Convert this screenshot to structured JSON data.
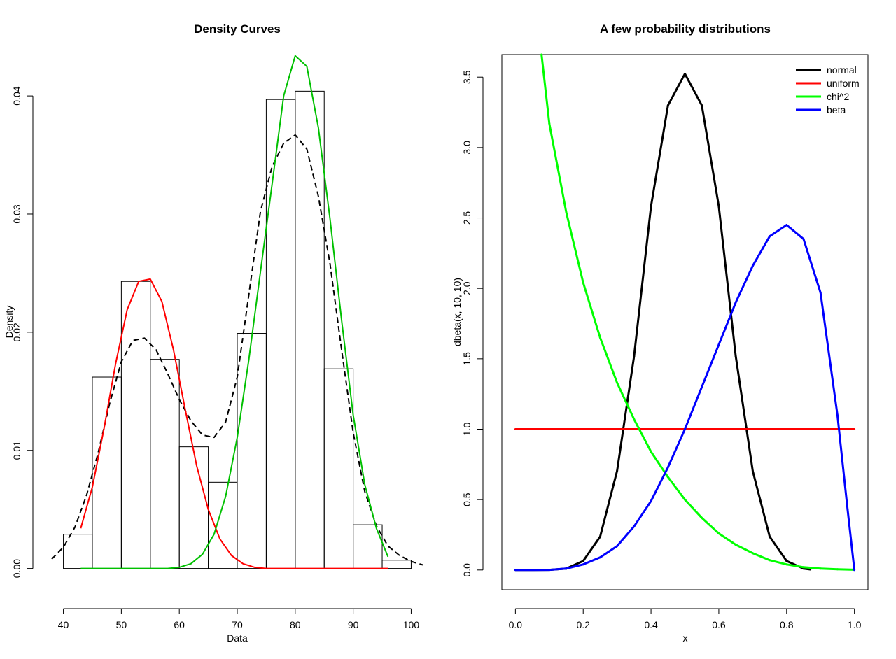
{
  "chart_data": [
    {
      "type": "histogram",
      "title": "Density Curves",
      "xlabel": "Data",
      "ylabel": "Density",
      "xlim": [
        38,
        102
      ],
      "ylim": [
        -0.0018,
        0.0435
      ],
      "xticks": [
        40,
        50,
        60,
        70,
        80,
        90,
        100
      ],
      "xtick_labels": [
        "40",
        "50",
        "60",
        "70",
        "80",
        "90",
        "100"
      ],
      "yticks": [
        0,
        0.01,
        0.02,
        0.03,
        0.04
      ],
      "ytick_labels": [
        "0.00",
        "0.01",
        "0.02",
        "0.03",
        "0.04"
      ],
      "grid": false,
      "bins": [
        {
          "x0": 40,
          "x1": 45,
          "density": 0.0029
        },
        {
          "x0": 45,
          "x1": 50,
          "density": 0.0162
        },
        {
          "x0": 50,
          "x1": 55,
          "density": 0.0243
        },
        {
          "x0": 55,
          "x1": 60,
          "density": 0.0177
        },
        {
          "x0": 60,
          "x1": 65,
          "density": 0.0103
        },
        {
          "x0": 65,
          "x1": 70,
          "density": 0.0073
        },
        {
          "x0": 70,
          "x1": 75,
          "density": 0.0199
        },
        {
          "x0": 75,
          "x1": 80,
          "density": 0.0397
        },
        {
          "x0": 80,
          "x1": 85,
          "density": 0.0404
        },
        {
          "x0": 85,
          "x1": 90,
          "density": 0.0169
        },
        {
          "x0": 90,
          "x1": 95,
          "density": 0.0037
        },
        {
          "x0": 95,
          "x1": 100,
          "density": 0.0007
        }
      ],
      "series": [
        {
          "style": "dashed",
          "color": "#000000",
          "x": [
            38,
            40,
            42,
            44,
            46,
            48,
            50,
            52,
            54,
            56,
            58,
            60,
            62,
            64,
            66,
            68,
            70,
            72,
            74,
            76,
            78,
            80,
            82,
            84,
            86,
            88,
            90,
            92,
            94,
            96,
            98,
            100,
            102
          ],
          "y": [
            0.0008,
            0.0018,
            0.0035,
            0.0062,
            0.0098,
            0.014,
            0.0175,
            0.0193,
            0.0195,
            0.0185,
            0.0165,
            0.0143,
            0.0125,
            0.0113,
            0.0111,
            0.0124,
            0.0162,
            0.0232,
            0.0302,
            0.034,
            0.036,
            0.0367,
            0.0355,
            0.0315,
            0.0258,
            0.0185,
            0.0115,
            0.0065,
            0.0036,
            0.0019,
            0.0011,
            0.0006,
            0.0003
          ]
        },
        {
          "style": "solid",
          "color": "#ff0000",
          "x": [
            43,
            45,
            47,
            49,
            51,
            53,
            55,
            57,
            59,
            61,
            63,
            65,
            67,
            69,
            71,
            73,
            75,
            80,
            85,
            90,
            96
          ],
          "y": [
            0.0034,
            0.0069,
            0.0118,
            0.0173,
            0.0219,
            0.0243,
            0.0245,
            0.0226,
            0.0185,
            0.0135,
            0.0087,
            0.005,
            0.0025,
            0.0011,
            0.0004,
            0.0001,
            0.0,
            0.0,
            0.0,
            0.0,
            0.0
          ]
        },
        {
          "style": "solid",
          "color": "#00c000",
          "x": [
            43,
            50,
            55,
            58,
            60,
            62,
            64,
            66,
            68,
            70,
            72,
            74,
            76,
            78,
            80,
            82,
            84,
            86,
            88,
            90,
            92,
            94,
            96
          ],
          "y": [
            0.0,
            0.0,
            0.0,
            0.0,
            0.0001,
            0.0004,
            0.0012,
            0.0029,
            0.0061,
            0.0111,
            0.0177,
            0.0251,
            0.0325,
            0.04,
            0.0434,
            0.0425,
            0.0373,
            0.0296,
            0.021,
            0.013,
            0.0071,
            0.0034,
            0.001
          ]
        }
      ]
    },
    {
      "type": "line",
      "title": "A few probability distributions",
      "xlabel": "x",
      "ylabel": "dbeta(x, 10, 10)",
      "xlim": [
        -0.04,
        1.04
      ],
      "ylim": [
        -0.14,
        3.66
      ],
      "xticks": [
        0,
        0.2,
        0.4,
        0.6,
        0.8,
        1.0
      ],
      "xtick_labels": [
        "0.0",
        "0.2",
        "0.4",
        "0.6",
        "0.8",
        "1.0"
      ],
      "yticks": [
        0,
        0.5,
        1,
        1.5,
        2,
        2.5,
        3,
        3.5
      ],
      "ytick_labels": [
        "0.0",
        "0.5",
        "1.0",
        "1.5",
        "2.0",
        "2.5",
        "3.0",
        "3.5"
      ],
      "grid": false,
      "legend_position": "top-right",
      "series": [
        {
          "name": "normal",
          "color": "#000000",
          "x": [
            0,
            0.1,
            0.15,
            0.2,
            0.25,
            0.3,
            0.35,
            0.4,
            0.45,
            0.5,
            0.55,
            0.6,
            0.65,
            0.7,
            0.75,
            0.8,
            0.85,
            0.87
          ],
          "y": [
            0,
            0.001,
            0.01,
            0.064,
            0.237,
            0.704,
            1.519,
            2.583,
            3.299,
            3.524,
            3.299,
            2.583,
            1.519,
            0.704,
            0.237,
            0.064,
            0.01,
            0.004
          ]
        },
        {
          "name": "uniform",
          "color": "#ff0000",
          "x": [
            0,
            1
          ],
          "y": [
            1,
            1
          ]
        },
        {
          "name": "chi^2",
          "color": "#00ff00",
          "x": [
            0.077,
            0.1,
            0.15,
            0.2,
            0.25,
            0.3,
            0.35,
            0.4,
            0.45,
            0.5,
            0.55,
            0.6,
            0.65,
            0.7,
            0.75,
            0.8,
            0.85,
            0.9,
            0.95,
            1.0
          ],
          "y": [
            3.66,
            3.17,
            2.54,
            2.04,
            1.65,
            1.33,
            1.07,
            0.84,
            0.66,
            0.5,
            0.37,
            0.26,
            0.18,
            0.12,
            0.07,
            0.04,
            0.02,
            0.01,
            0.005,
            0.002
          ]
        },
        {
          "name": "beta",
          "color": "#0000ff",
          "x": [
            0,
            0.1,
            0.15,
            0.2,
            0.25,
            0.3,
            0.35,
            0.4,
            0.45,
            0.5,
            0.55,
            0.6,
            0.65,
            0.7,
            0.75,
            0.8,
            0.85,
            0.9,
            0.95,
            0.98,
            1.0
          ],
          "y": [
            0,
            0.001,
            0.01,
            0.04,
            0.09,
            0.17,
            0.31,
            0.49,
            0.73,
            1.0,
            1.3,
            1.6,
            1.9,
            2.16,
            2.37,
            2.45,
            2.35,
            1.97,
            1.1,
            0.43,
            0
          ]
        }
      ]
    }
  ]
}
